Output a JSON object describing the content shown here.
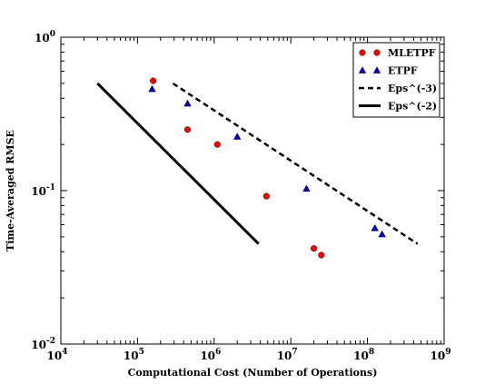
{
  "chart_data": {
    "type": "scatter",
    "title": "",
    "xlabel": "Computational Cost (Number of Operations)",
    "ylabel": "Time-Averaged RMSE",
    "xscale": "log",
    "yscale": "log",
    "xlim": [
      10000,
      1000000000
    ],
    "ylim": [
      0.01,
      1
    ],
    "grid": false,
    "legend_position": "top-right",
    "x_ticks": [
      {
        "base": "10",
        "exp": "4",
        "value": 10000
      },
      {
        "base": "10",
        "exp": "5",
        "value": 100000
      },
      {
        "base": "10",
        "exp": "6",
        "value": 1000000
      },
      {
        "base": "10",
        "exp": "7",
        "value": 10000000
      },
      {
        "base": "10",
        "exp": "8",
        "value": 100000000
      },
      {
        "base": "10",
        "exp": "9",
        "value": 1000000000
      }
    ],
    "y_ticks": [
      {
        "base": "10",
        "exp": "-2",
        "value": 0.01
      },
      {
        "base": "10",
        "exp": "-1",
        "value": 0.1
      },
      {
        "base": "10",
        "exp": "0",
        "value": 1
      }
    ],
    "series": [
      {
        "name": "MLETPF",
        "kind": "marker",
        "marker": "circle",
        "color": "#ff0000",
        "points": [
          {
            "x": 160000,
            "y": 0.52
          },
          {
            "x": 450000,
            "y": 0.25
          },
          {
            "x": 1100000,
            "y": 0.2
          },
          {
            "x": 4800000,
            "y": 0.092
          },
          {
            "x": 20000000,
            "y": 0.042
          },
          {
            "x": 25000000,
            "y": 0.038
          }
        ]
      },
      {
        "name": "ETPF",
        "kind": "marker",
        "marker": "triangle",
        "color": "#0000cc",
        "points": [
          {
            "x": 155000,
            "y": 0.46
          },
          {
            "x": 450000,
            "y": 0.37
          },
          {
            "x": 2000000,
            "y": 0.225
          },
          {
            "x": 16000000,
            "y": 0.103
          },
          {
            "x": 125000000,
            "y": 0.057
          },
          {
            "x": 155000000,
            "y": 0.052
          }
        ]
      },
      {
        "name": "Eps^(-3)",
        "kind": "line",
        "dash": "dashed",
        "color": "#000000",
        "points": [
          {
            "x": 290000,
            "y": 0.5
          },
          {
            "x": 450000000,
            "y": 0.045
          }
        ]
      },
      {
        "name": "Eps^(-2)",
        "kind": "line",
        "dash": "solid",
        "color": "#000000",
        "points": [
          {
            "x": 30000,
            "y": 0.5
          },
          {
            "x": 3800000,
            "y": 0.045
          }
        ]
      }
    ]
  }
}
